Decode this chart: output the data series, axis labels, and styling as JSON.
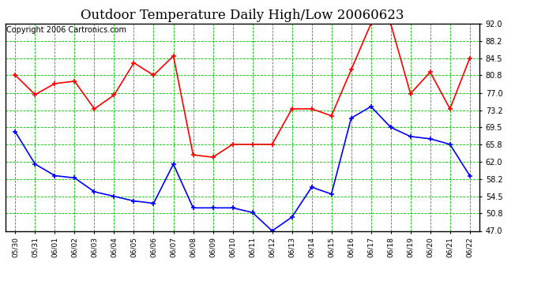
{
  "title": "Outdoor Temperature Daily High/Low 20060623",
  "copyright": "Copyright 2006 Cartronics.com",
  "x_labels": [
    "05/30",
    "05/31",
    "06/01",
    "06/02",
    "06/03",
    "06/04",
    "06/05",
    "06/06",
    "06/07",
    "06/08",
    "06/09",
    "06/10",
    "06/11",
    "06/12",
    "06/13",
    "06/14",
    "06/15",
    "06/16",
    "06/17",
    "06/18",
    "06/19",
    "06/20",
    "06/21",
    "06/22"
  ],
  "high_temps": [
    80.8,
    76.6,
    79.0,
    79.5,
    73.5,
    76.5,
    83.5,
    80.8,
    85.0,
    63.5,
    63.0,
    65.8,
    65.8,
    65.8,
    73.5,
    73.5,
    72.0,
    82.0,
    92.0,
    92.0,
    76.8,
    81.5,
    73.5,
    84.5
  ],
  "low_temps": [
    68.5,
    61.5,
    59.0,
    58.5,
    55.5,
    54.5,
    53.5,
    53.0,
    61.5,
    52.0,
    52.0,
    52.0,
    51.0,
    47.0,
    50.0,
    56.5,
    55.0,
    71.5,
    74.0,
    69.5,
    67.5,
    67.0,
    65.8,
    59.0
  ],
  "high_color": "#ff0000",
  "low_color": "#0000ff",
  "bg_color": "#ffffff",
  "plot_bg_color": "#ffffff",
  "grid_color": "#00bb00",
  "yticks": [
    47.0,
    50.8,
    54.5,
    58.2,
    62.0,
    65.8,
    69.5,
    73.2,
    77.0,
    80.8,
    84.5,
    88.2,
    92.0
  ],
  "ytick_labels": [
    "47.0",
    "50.8",
    "54.5",
    "58.2",
    "62.0",
    "65.8",
    "69.5",
    "73.2",
    "77.0",
    "80.8",
    "84.5",
    "88.2",
    "92.0"
  ],
  "ymin": 47.0,
  "ymax": 92.0,
  "title_fontsize": 12,
  "copyright_fontsize": 7,
  "marker": "+",
  "marker_size": 5,
  "line_width": 1.2
}
